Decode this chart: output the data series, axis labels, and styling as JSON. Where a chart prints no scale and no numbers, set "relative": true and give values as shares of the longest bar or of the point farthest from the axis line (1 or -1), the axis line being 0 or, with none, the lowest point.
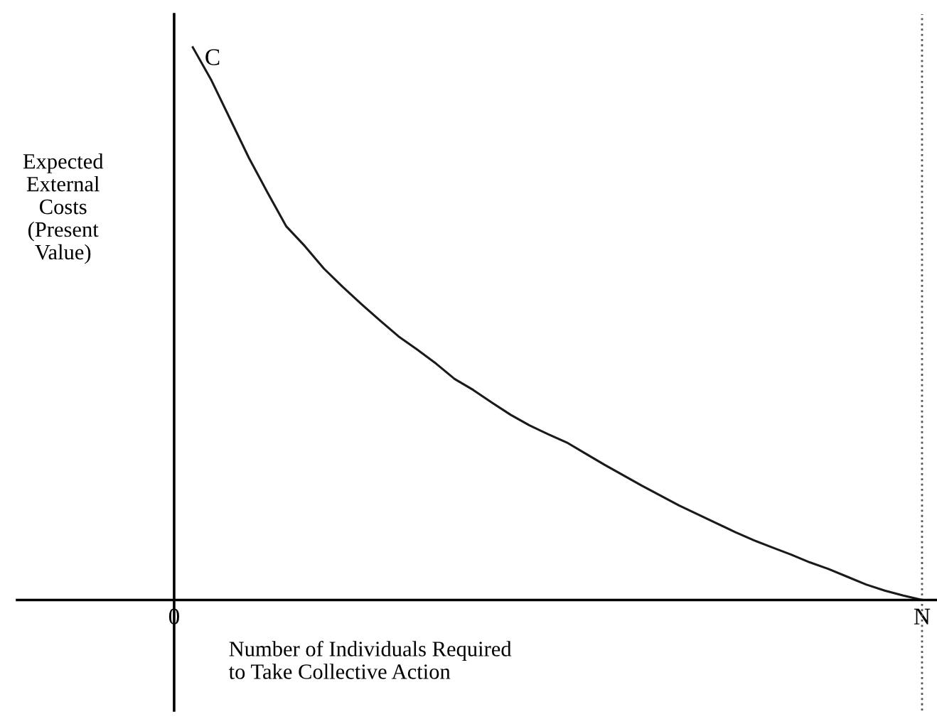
{
  "chart_data": {
    "type": "line",
    "relative": true,
    "xlabel": "Number of Individuals Required\nto Take Collective Action",
    "ylabel": "Expected\nExternal\nCosts\n(Present\nValue)",
    "categories": [
      "0",
      null,
      null,
      null,
      null,
      null,
      null,
      null,
      null,
      null,
      null,
      null,
      null,
      null,
      null,
      null,
      null,
      null,
      null,
      null,
      null,
      null,
      null,
      null,
      null,
      null,
      null,
      null,
      null,
      null,
      null,
      null,
      null,
      null,
      null,
      null,
      null,
      null,
      null,
      null,
      "N"
    ],
    "series": [
      {
        "color": "#1a1a1a",
        "values": [
          null,
          1.0,
          0.94,
          0.87,
          0.8,
          0.737,
          0.676,
          0.64,
          0.6,
          0.567,
          0.536,
          0.506,
          0.477,
          0.453,
          0.428,
          0.4,
          0.38,
          0.357,
          0.335,
          0.316,
          0.3,
          0.285,
          0.265,
          0.245,
          0.226,
          0.207,
          0.189,
          0.171,
          0.155,
          0.139,
          0.123,
          0.108,
          0.095,
          0.082,
          0.068,
          0.056,
          0.042,
          0.028,
          0.017,
          0.008,
          0.0
        ]
      }
    ],
    "ref_lines": [
      {
        "axis": "x",
        "value": "N",
        "color": "#555555",
        "line_style": "dotted"
      }
    ],
    "annotations": [
      "C"
    ],
    "grid": false,
    "legend": false,
    "marker": "none",
    "line_style": "solid"
  }
}
